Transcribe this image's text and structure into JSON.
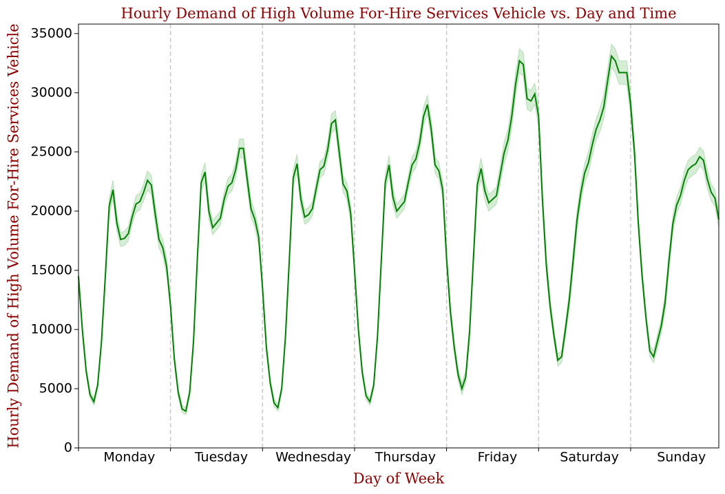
{
  "chart_data": {
    "type": "line",
    "title": "Hourly Demand of High Volume For-Hire Services Vehicle vs. Day and Time",
    "x_label": "Day of Week",
    "y_label": "Hourly Demand of High Volume For-Hire Services Vehicle",
    "x": [
      0,
      1,
      2,
      3,
      4,
      5,
      6,
      7,
      8,
      9,
      10,
      11,
      12,
      13,
      14,
      15,
      16,
      17,
      18,
      19,
      20,
      21,
      22,
      23,
      24,
      25,
      26,
      27,
      28,
      29,
      30,
      31,
      32,
      33,
      34,
      35,
      36,
      37,
      38,
      39,
      40,
      41,
      42,
      43,
      44,
      45,
      46,
      47,
      48,
      49,
      50,
      51,
      52,
      53,
      54,
      55,
      56,
      57,
      58,
      59,
      60,
      61,
      62,
      63,
      64,
      65,
      66,
      67,
      68,
      69,
      70,
      71,
      72,
      73,
      74,
      75,
      76,
      77,
      78,
      79,
      80,
      81,
      82,
      83,
      84,
      85,
      86,
      87,
      88,
      89,
      90,
      91,
      92,
      93,
      94,
      95,
      96,
      97,
      98,
      99,
      100,
      101,
      102,
      103,
      104,
      105,
      106,
      107,
      108,
      109,
      110,
      111,
      112,
      113,
      114,
      115,
      116,
      117,
      118,
      119,
      120,
      121,
      122,
      123,
      124,
      125,
      126,
      127,
      128,
      129,
      130,
      131,
      132,
      133,
      134,
      135,
      136,
      137,
      138,
      139,
      140,
      141,
      142,
      143,
      144,
      145,
      146,
      147,
      148,
      149,
      150,
      151,
      152,
      153,
      154,
      155,
      156,
      157,
      158,
      159,
      160,
      161,
      162,
      163,
      164,
      165,
      166,
      167
    ],
    "series": [
      {
        "color": "#008000",
        "band_color": "#2ca02c",
        "values": [
          14500,
          10000,
          6500,
          4500,
          3900,
          5300,
          9000,
          14500,
          20400,
          21800,
          19000,
          17600,
          17700,
          18100,
          19500,
          20600,
          20800,
          21600,
          22600,
          22200,
          19800,
          17600,
          16900,
          15300,
          12000,
          7500,
          4700,
          3300,
          3100,
          4700,
          9000,
          16000,
          22400,
          23300,
          20000,
          18600,
          19000,
          19400,
          21000,
          22100,
          22400,
          23500,
          25300,
          25300,
          22700,
          20200,
          19300,
          17800,
          13500,
          8500,
          5500,
          3800,
          3400,
          5000,
          9500,
          16000,
          22800,
          24000,
          21000,
          19500,
          19700,
          20200,
          21900,
          23500,
          23800,
          25200,
          27400,
          27700,
          25000,
          22300,
          21700,
          19800,
          15000,
          10000,
          6400,
          4400,
          3900,
          5300,
          9500,
          16000,
          22400,
          23900,
          21200,
          20000,
          20400,
          20800,
          22400,
          23900,
          24400,
          25800,
          28000,
          29000,
          26900,
          23900,
          23400,
          21800,
          16000,
          11500,
          8500,
          6200,
          5000,
          6000,
          9800,
          16000,
          22200,
          23600,
          21700,
          20700,
          21000,
          21300,
          23100,
          24900,
          26000,
          28000,
          30700,
          32700,
          32400,
          29500,
          29300,
          29900,
          28000,
          21000,
          15500,
          12000,
          9500,
          7400,
          7700,
          10000,
          12500,
          15800,
          19200,
          21500,
          23200,
          24100,
          25600,
          26900,
          27700,
          28800,
          31000,
          33100,
          32700,
          31700,
          31700,
          31700,
          29000,
          25000,
          19000,
          14500,
          11000,
          8200,
          7700,
          9000,
          10300,
          12300,
          15800,
          18900,
          20500,
          21300,
          22600,
          23500,
          23800,
          24000,
          24600,
          24300,
          22700,
          21600,
          21100,
          19300
        ],
        "errors": [
          400,
          400,
          350,
          300,
          300,
          300,
          400,
          600,
          700,
          800,
          700,
          600,
          600,
          600,
          600,
          700,
          700,
          700,
          800,
          800,
          800,
          700,
          700,
          700,
          400,
          400,
          350,
          300,
          300,
          300,
          400,
          600,
          700,
          800,
          700,
          600,
          600,
          600,
          600,
          700,
          700,
          700,
          800,
          800,
          800,
          700,
          700,
          700,
          400,
          400,
          350,
          300,
          300,
          300,
          400,
          600,
          700,
          800,
          700,
          600,
          600,
          600,
          600,
          700,
          700,
          700,
          800,
          800,
          800,
          700,
          700,
          700,
          400,
          400,
          350,
          300,
          300,
          300,
          400,
          600,
          700,
          800,
          700,
          600,
          600,
          600,
          600,
          700,
          700,
          700,
          800,
          800,
          800,
          700,
          700,
          700,
          600,
          600,
          500,
          500,
          500,
          500,
          600,
          700,
          800,
          900,
          800,
          700,
          700,
          700,
          800,
          900,
          900,
          1000,
          1000,
          1000,
          1000,
          900,
          900,
          900,
          900,
          800,
          700,
          600,
          500,
          500,
          500,
          600,
          700,
          800,
          800,
          800,
          800,
          900,
          900,
          900,
          1000,
          1000,
          1000,
          1000,
          1000,
          1000,
          1000,
          1000,
          900,
          800,
          700,
          600,
          500,
          500,
          500,
          600,
          600,
          700,
          700,
          700,
          700,
          700,
          800,
          800,
          800,
          800,
          800,
          800,
          800,
          700,
          700,
          700
        ]
      }
    ],
    "xlim": [
      0,
      167
    ],
    "xticks": [
      {
        "value": 12,
        "label": "Monday"
      },
      {
        "value": 36,
        "label": "Tuesday"
      },
      {
        "value": 60,
        "label": "Wednesday"
      },
      {
        "value": 84,
        "label": "Thursday"
      },
      {
        "value": 108,
        "label": "Friday"
      },
      {
        "value": 132,
        "label": "Saturday"
      },
      {
        "value": 156,
        "label": "Sunday"
      }
    ],
    "xminorticks": [
      0,
      24,
      48,
      72,
      96,
      120,
      144
    ],
    "day_dividers": [
      24,
      48,
      72,
      96,
      120,
      144
    ],
    "ylim": [
      0,
      35800
    ],
    "yticks": [
      0,
      5000,
      10000,
      15000,
      20000,
      25000,
      30000,
      35000
    ]
  }
}
